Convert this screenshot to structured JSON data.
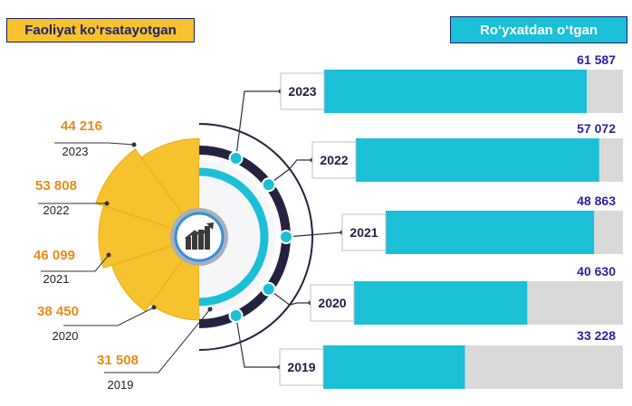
{
  "legend": {
    "left": "Faoliyat ko‘rsatayotgan",
    "right": "Ro‘yxatdan o‘tgan"
  },
  "colors": {
    "active": "#f6c22d",
    "registered": "#1bbfd6",
    "bar_track": "#d9d9d9",
    "left_value": "#e88a1a",
    "right_value": "#2a1fa6",
    "ring_dark": "#23233f"
  },
  "center_icon": "growth-chart-icon",
  "chart_data": [
    {
      "type": "bar",
      "orientation": "horizontal",
      "categories": [
        "2023",
        "2022",
        "2021",
        "2020",
        "2019"
      ],
      "series": [
        {
          "name": "Ro‘yxatdan o‘tgan",
          "values": [
            61587,
            57072,
            48863,
            40630,
            33228
          ]
        }
      ],
      "value_labels": [
        "61 587",
        "57 072",
        "48 863",
        "40 630",
        "33 228"
      ]
    },
    {
      "type": "pie",
      "categories": [
        "2023",
        "2022",
        "2021",
        "2020",
        "2019"
      ],
      "series": [
        {
          "name": "Faoliyat ko‘rsatayotgan",
          "values": [
            44216,
            53808,
            46099,
            38450,
            31508
          ]
        }
      ],
      "value_labels": [
        "44 216",
        "53 808",
        "46 099",
        "38 450",
        "31 508"
      ]
    }
  ]
}
